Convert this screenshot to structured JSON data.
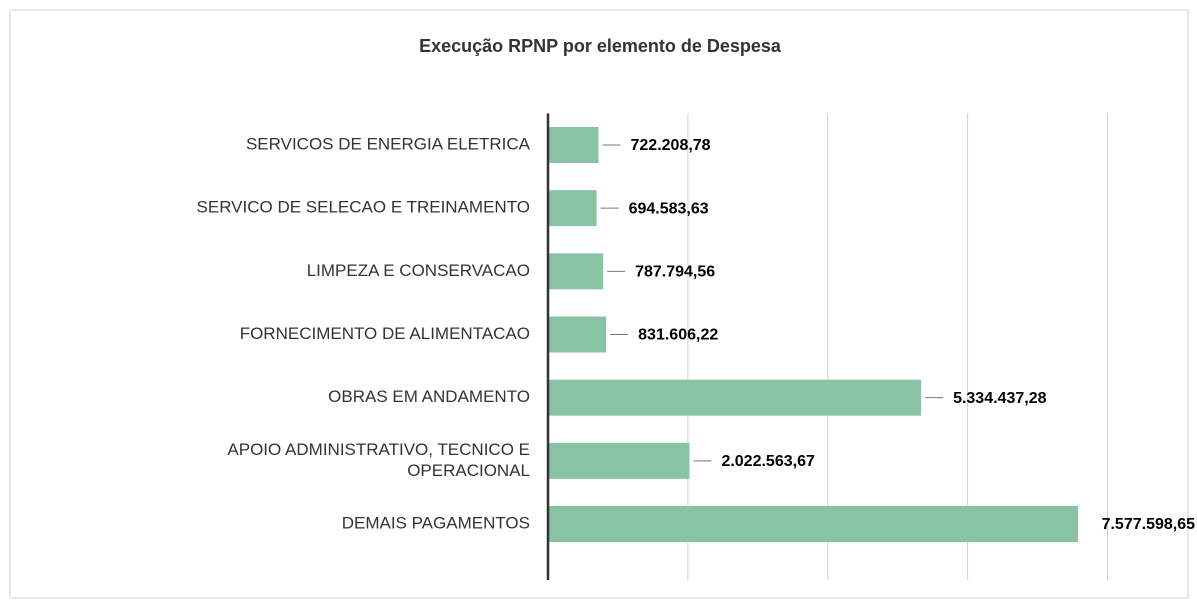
{
  "chart_data": {
    "type": "barh",
    "title": "Execução RPNP por elemento de Despesa",
    "categories": [
      "SERVICOS DE ENERGIA ELETRICA",
      "SERVICO DE SELECAO E TREINAMENTO",
      "LIMPEZA E CONSERVACAO",
      "FORNECIMENTO DE ALIMENTACAO",
      "OBRAS EM ANDAMENTO",
      "APOIO ADMINISTRATIVO, TECNICO E OPERACIONAL",
      "DEMAIS PAGAMENTOS"
    ],
    "values": [
      722208.78,
      694583.63,
      787794.56,
      831606.22,
      5334437.28,
      2022563.67,
      7577598.65
    ],
    "value_labels": [
      "722.208,78",
      "694.583,63",
      "787.794,56",
      "831.606,22",
      "5.334.437,28",
      "2.022.563,67",
      "7.577.598,65"
    ],
    "color": "#88c3a4",
    "xlim": [
      0,
      8000000
    ],
    "xticks": [
      0,
      2000000,
      4000000,
      6000000,
      8000000
    ],
    "grid": true
  }
}
